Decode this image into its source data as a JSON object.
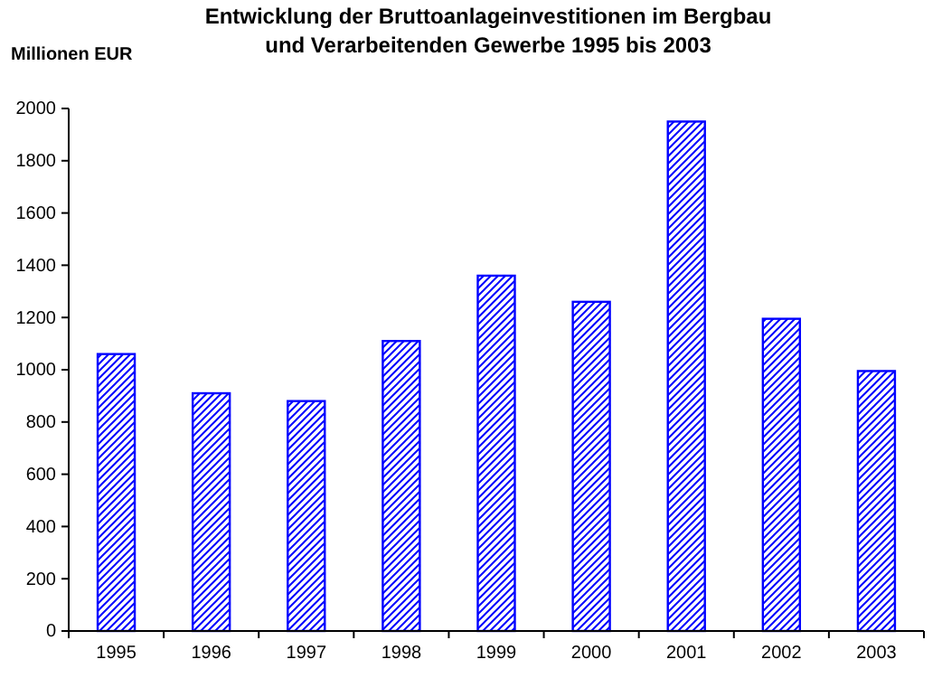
{
  "chart_data": {
    "type": "bar",
    "title": "Entwicklung der Bruttoanlageinvestitionen im Bergbau\nund Verarbeitenden  Gewerbe 1995 bis 2003",
    "ylabel": "Millionen EUR",
    "categories": [
      "1995",
      "1996",
      "1997",
      "1998",
      "1999",
      "2000",
      "2001",
      "2002",
      "2003"
    ],
    "values": [
      1060,
      910,
      880,
      1110,
      1360,
      1260,
      1950,
      1195,
      995
    ],
    "color": "#0000ff",
    "ylim": [
      0,
      2000
    ],
    "yticks": [
      0,
      200,
      400,
      600,
      800,
      1000,
      1200,
      1400,
      1600,
      1800,
      2000
    ],
    "grid": false
  }
}
